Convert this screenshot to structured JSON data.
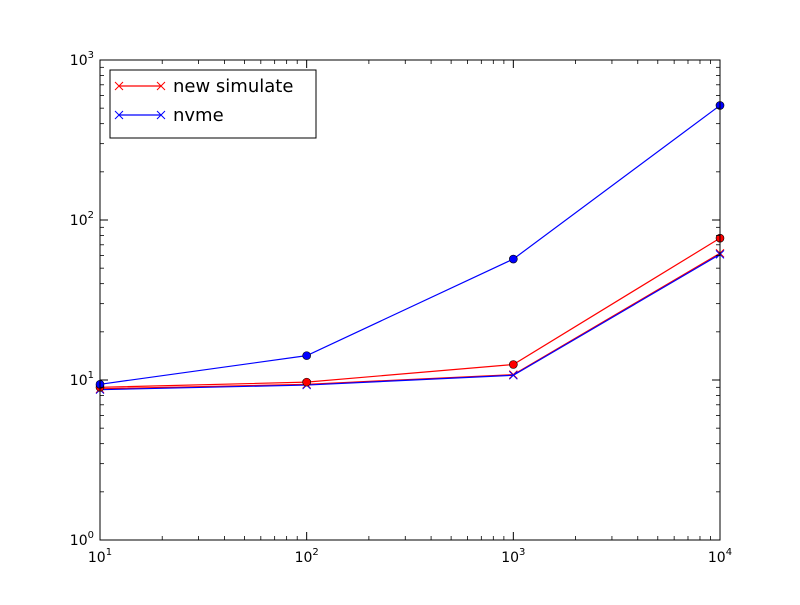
{
  "chart_data": {
    "type": "line",
    "title": "",
    "xlabel": "",
    "ylabel": "",
    "xscale": "log",
    "yscale": "log",
    "xlim": [
      10,
      10000
    ],
    "ylim": [
      1,
      1000
    ],
    "grid": false,
    "legend_position": "top-left",
    "x_ticks": [
      {
        "value": 10,
        "base": "10",
        "exp": "1"
      },
      {
        "value": 100,
        "base": "10",
        "exp": "2"
      },
      {
        "value": 1000,
        "base": "10",
        "exp": "3"
      },
      {
        "value": 10000,
        "base": "10",
        "exp": "4"
      }
    ],
    "y_ticks": [
      {
        "value": 1,
        "base": "10",
        "exp": "0"
      },
      {
        "value": 10,
        "base": "10",
        "exp": "1"
      },
      {
        "value": 100,
        "base": "10",
        "exp": "2"
      },
      {
        "value": 1000,
        "base": "10",
        "exp": "3"
      }
    ],
    "x": [
      10,
      100,
      1000,
      10000
    ],
    "series": [
      {
        "name": "new simulate",
        "color": "#ff0000",
        "marker": "x",
        "values": [
          8.8,
          9.4,
          10.8,
          62
        ]
      },
      {
        "name": "nvme",
        "color": "#0000ff",
        "marker": "x",
        "values": [
          8.7,
          9.3,
          10.7,
          61
        ]
      },
      {
        "name": "",
        "color": "#ff0000",
        "marker": "o",
        "values": [
          9.0,
          9.7,
          12.5,
          77
        ]
      },
      {
        "name": "",
        "color": "#0000ff",
        "marker": "o",
        "values": [
          9.4,
          14.2,
          57,
          520
        ]
      }
    ]
  }
}
